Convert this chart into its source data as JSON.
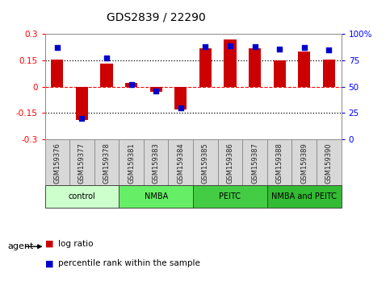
{
  "title": "GDS2839 / 22290",
  "samples": [
    "GSM159376",
    "GSM159377",
    "GSM159378",
    "GSM159381",
    "GSM159383",
    "GSM159384",
    "GSM159385",
    "GSM159386",
    "GSM159387",
    "GSM159388",
    "GSM159389",
    "GSM159390"
  ],
  "log_ratio": [
    0.155,
    -0.19,
    0.13,
    0.02,
    -0.03,
    -0.13,
    0.22,
    0.27,
    0.22,
    0.15,
    0.2,
    0.155
  ],
  "percentile_rank": [
    87,
    20,
    77,
    52,
    46,
    30,
    88,
    89,
    88,
    86,
    87,
    85
  ],
  "bar_color": "#cc0000",
  "dot_color": "#0000cc",
  "ylim_left": [
    -0.3,
    0.3
  ],
  "ylim_right": [
    0,
    100
  ],
  "yticks_left": [
    -0.3,
    -0.15,
    0,
    0.15,
    0.3
  ],
  "yticks_right": [
    0,
    25,
    50,
    75,
    100
  ],
  "ytick_labels_left": [
    "-0.3",
    "-0.15",
    "0",
    "0.15",
    "0.3"
  ],
  "ytick_labels_right": [
    "0",
    "25",
    "50",
    "75",
    "100%"
  ],
  "hlines_y": [
    0.15,
    0.0,
    -0.15
  ],
  "hline_styles": [
    "dotted",
    "dotted",
    "dotted"
  ],
  "hline_colors": [
    "black",
    "black",
    "black"
  ],
  "zero_line_color": "red",
  "zero_line_style": "dashed",
  "groups": [
    {
      "label": "control",
      "start": 0,
      "end": 3,
      "color": "#ccffcc"
    },
    {
      "label": "NMBA",
      "start": 3,
      "end": 6,
      "color": "#66ee66"
    },
    {
      "label": "PEITC",
      "start": 6,
      "end": 9,
      "color": "#44cc44"
    },
    {
      "label": "NMBA and PEITC",
      "start": 9,
      "end": 12,
      "color": "#33bb33"
    }
  ],
  "agent_label": "agent",
  "legend_bar_label": "log ratio",
  "legend_dot_label": "percentile rank within the sample",
  "background_plot": "#ffffff",
  "background_label": "#d8d8d8",
  "bar_width": 0.5
}
